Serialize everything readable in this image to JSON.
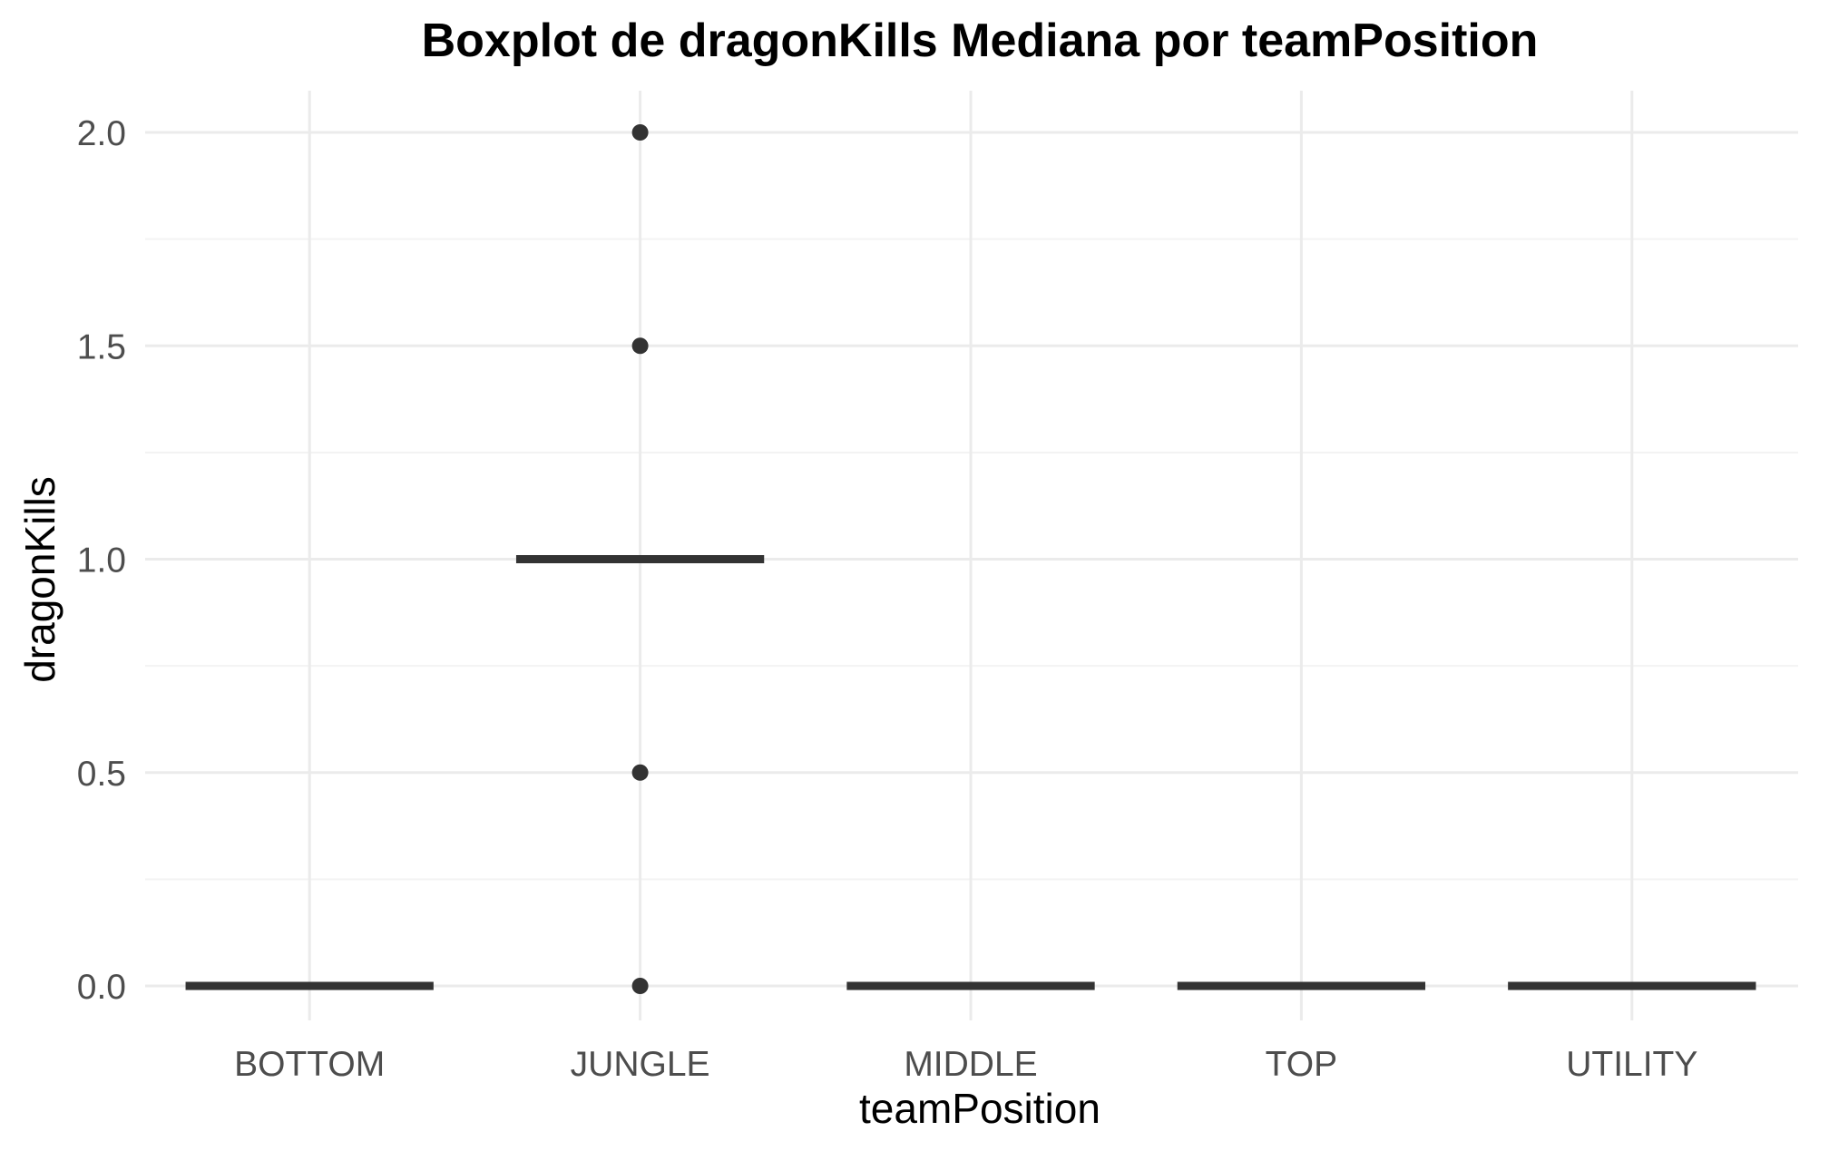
{
  "chart_data": {
    "type": "boxplot",
    "title": "Boxplot de dragonKills Mediana por teamPosition",
    "xlabel": "teamPosition",
    "ylabel": "dragonKills",
    "categories": [
      "BOTTOM",
      "JUNGLE",
      "MIDDLE",
      "TOP",
      "UTILITY"
    ],
    "ylim": [
      -0.075,
      2.1
    ],
    "yticks": [
      0.0,
      0.5,
      1.0,
      1.5,
      2.0
    ],
    "ytick_labels": [
      "0.0",
      "0.5",
      "1.0",
      "1.5",
      "2.0"
    ],
    "grid": true,
    "boxes": [
      {
        "category": "BOTTOM",
        "q1": 0,
        "median": 0,
        "q3": 0,
        "whisker_low": 0,
        "whisker_high": 0,
        "outliers": []
      },
      {
        "category": "JUNGLE",
        "q1": 1,
        "median": 1,
        "q3": 1,
        "whisker_low": 1,
        "whisker_high": 1,
        "outliers": [
          2.0,
          1.5,
          0.5,
          0.0
        ]
      },
      {
        "category": "MIDDLE",
        "q1": 0,
        "median": 0,
        "q3": 0,
        "whisker_low": 0,
        "whisker_high": 0,
        "outliers": []
      },
      {
        "category": "TOP",
        "q1": 0,
        "median": 0,
        "q3": 0,
        "whisker_low": 0,
        "whisker_high": 0,
        "outliers": []
      },
      {
        "category": "UTILITY",
        "q1": 0,
        "median": 0,
        "q3": 0,
        "whisker_low": 0,
        "whisker_high": 0,
        "outliers": []
      }
    ],
    "colors": {
      "box_line": "#333333",
      "grid": "#ebebeb",
      "tick_text": "#4d4d4d"
    }
  }
}
